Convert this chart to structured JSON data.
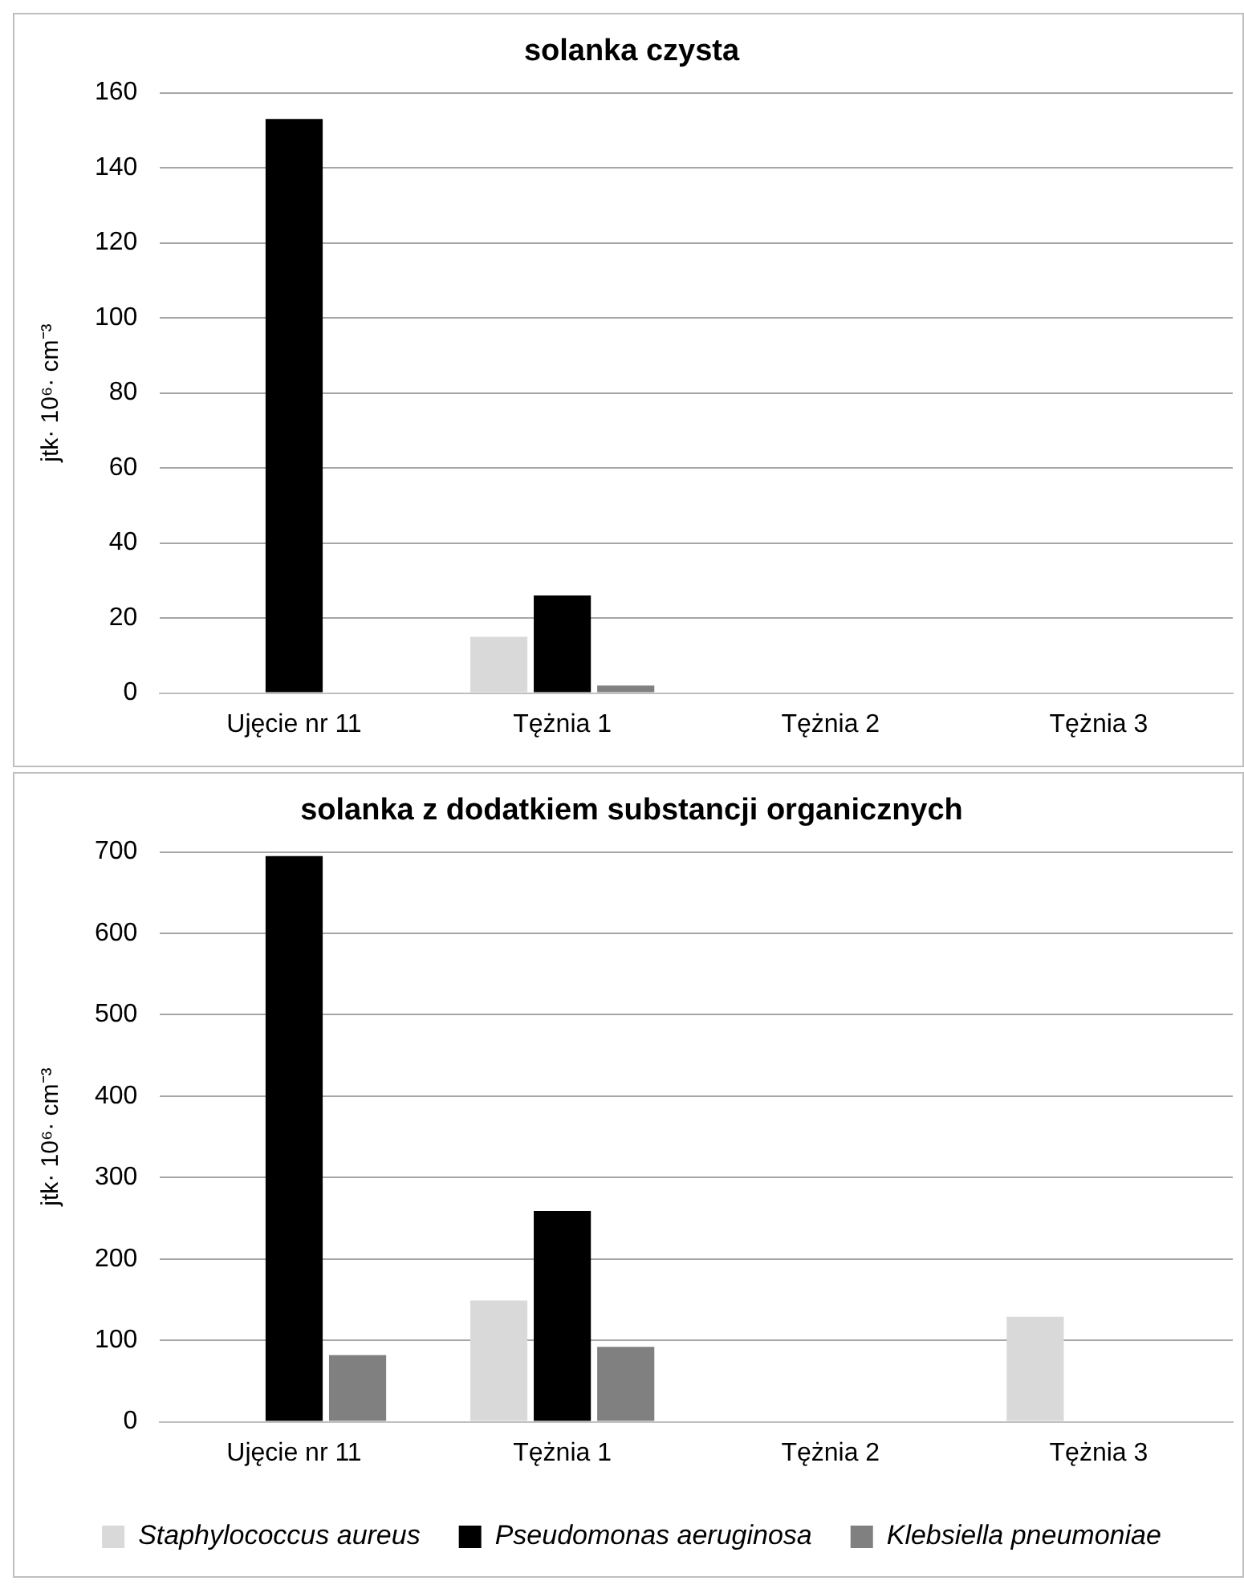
{
  "chart_data": [
    {
      "type": "bar",
      "title": "solanka czysta",
      "ylabel": "jtk· 10⁶· cm⁻³",
      "categories": [
        "Ujęcie nr 11",
        "Tężnia 1",
        "Tężnia 2",
        "Tężnia 3"
      ],
      "series": [
        {
          "color": "#d9d9d9",
          "values": [
            0,
            15,
            0,
            0
          ]
        },
        {
          "color": "#000000",
          "values": [
            153,
            26,
            0,
            0
          ]
        },
        {
          "color": "#808080",
          "values": [
            0,
            2,
            0,
            0
          ]
        }
      ],
      "ylim": [
        0,
        160
      ],
      "yticks": [
        0,
        20,
        40,
        60,
        80,
        100,
        120,
        140,
        160
      ],
      "grid": "y",
      "legend": false
    },
    {
      "type": "bar",
      "title": "solanka z dodatkiem substancji organicznych",
      "ylabel": "jtk· 10⁶· cm⁻³",
      "categories": [
        "Ujęcie nr 11",
        "Tężnia 1",
        "Tężnia 2",
        "Tężnia 3"
      ],
      "series": [
        {
          "name": "Staphylococcus aureus",
          "color": "#d9d9d9",
          "values": [
            0,
            149,
            0,
            129
          ]
        },
        {
          "name": "Pseudomonas aeruginosa",
          "color": "#000000",
          "values": [
            695,
            259,
            0,
            0
          ]
        },
        {
          "name": "Klebsiella pneumoniae",
          "color": "#808080",
          "values": [
            82,
            92,
            0,
            0
          ]
        }
      ],
      "ylim": [
        0,
        700
      ],
      "yticks": [
        0,
        100,
        200,
        300,
        400,
        500,
        600,
        700
      ],
      "grid": "y",
      "legend": "bottom"
    }
  ]
}
